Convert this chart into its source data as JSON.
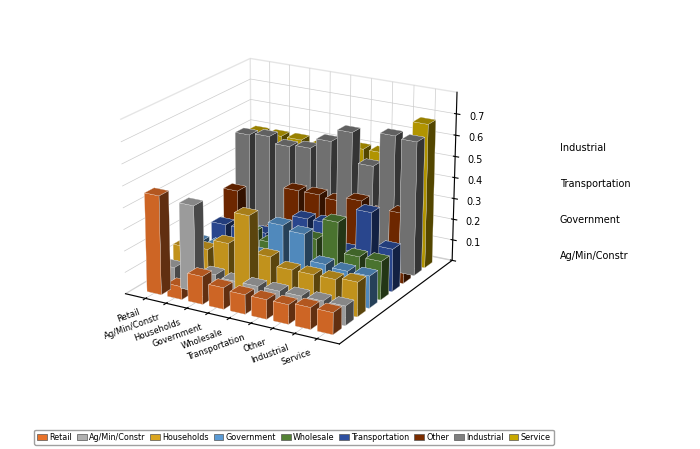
{
  "categories": [
    "Retail",
    "Ag/Min/Constr",
    "Households",
    "Government",
    "Wholesale",
    "Transportation",
    "Other",
    "Industrial",
    "Service"
  ],
  "series": [
    "Retail",
    "Ag/Min/Constr",
    "Households",
    "Government",
    "Wholesale",
    "Transportation",
    "Other",
    "Industrial",
    "Service"
  ],
  "colors": [
    "#E8722A",
    "#B0B0B0",
    "#DAA520",
    "#5B9BD5",
    "#548235",
    "#2E4FA0",
    "#7B2C00",
    "#7F7F7F",
    "#C8A800"
  ],
  "values": [
    [
      0.46,
      0.06,
      0.13,
      0.1,
      0.09,
      0.09,
      0.09,
      0.1,
      0.1
    ],
    [
      0.09,
      0.4,
      0.1,
      0.09,
      0.09,
      0.09,
      0.09,
      0.09,
      0.09
    ],
    [
      0.15,
      0.16,
      0.21,
      0.36,
      0.19,
      0.15,
      0.15,
      0.15,
      0.16
    ],
    [
      0.14,
      0.14,
      0.14,
      0.14,
      0.3,
      0.28,
      0.16,
      0.15,
      0.15
    ],
    [
      0.06,
      0.06,
      0.19,
      0.16,
      0.16,
      0.22,
      0.32,
      0.18,
      0.18
    ],
    [
      0.15,
      0.15,
      0.15,
      0.15,
      0.26,
      0.26,
      0.15,
      0.35,
      0.2
    ],
    [
      0.28,
      0.12,
      0.13,
      0.34,
      0.34,
      0.33,
      0.35,
      0.31,
      0.33
    ],
    [
      0.52,
      0.53,
      0.5,
      0.51,
      0.56,
      0.62,
      0.48,
      0.64,
      0.63
    ],
    [
      0.5,
      0.5,
      0.5,
      0.48,
      0.48,
      0.51,
      0.51,
      0.55,
      0.68
    ]
  ],
  "side_labels": [
    "Industrial",
    "Transportation",
    "Government",
    "Ag/Min/Constr"
  ],
  "side_label_colors": [
    "black",
    "black",
    "black",
    "black"
  ],
  "ylim": [
    0,
    0.8
  ],
  "yticks": [
    0,
    0.1,
    0.2,
    0.3,
    0.4,
    0.5,
    0.6,
    0.7
  ],
  "background_color": "#FFFFFF",
  "grid_color": "#CCCCCC",
  "elev": 20,
  "azim": -60
}
